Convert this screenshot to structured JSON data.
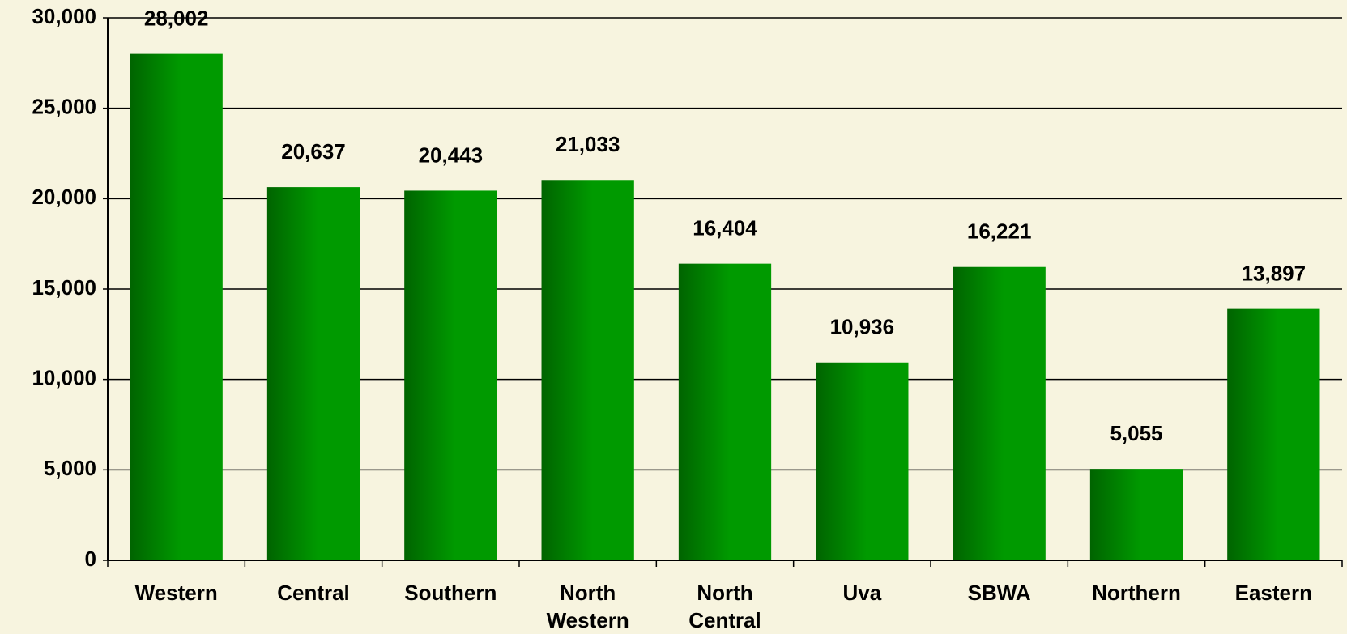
{
  "chart_data": {
    "type": "bar",
    "categories": [
      "Western",
      "Central",
      "Southern",
      "North Western",
      "North Central",
      "Uva",
      "SBWA",
      "Northern",
      "Eastern"
    ],
    "values": [
      28002,
      20637,
      20443,
      21033,
      16404,
      10936,
      16221,
      5055,
      13897
    ],
    "value_labels": [
      "28,002",
      "20,637",
      "20,443",
      "21,033",
      "16,404",
      "10,936",
      "16,221",
      "5,055",
      "13,897"
    ],
    "gradient": [
      "#006400",
      "#009a00"
    ],
    "ylim": [
      0,
      30000
    ],
    "yticks": [
      0,
      {
        "value": 5000,
        "label": "5,000"
      },
      {
        "value": 10000,
        "label": "10,000"
      },
      {
        "value": 15000,
        "label": "15,000"
      },
      {
        "value": 20000,
        "label": "20,000"
      },
      {
        "value": 25000,
        "label": "25,000"
      },
      {
        "value": 30000,
        "label": "30,000"
      }
    ],
    "grid": true
  }
}
